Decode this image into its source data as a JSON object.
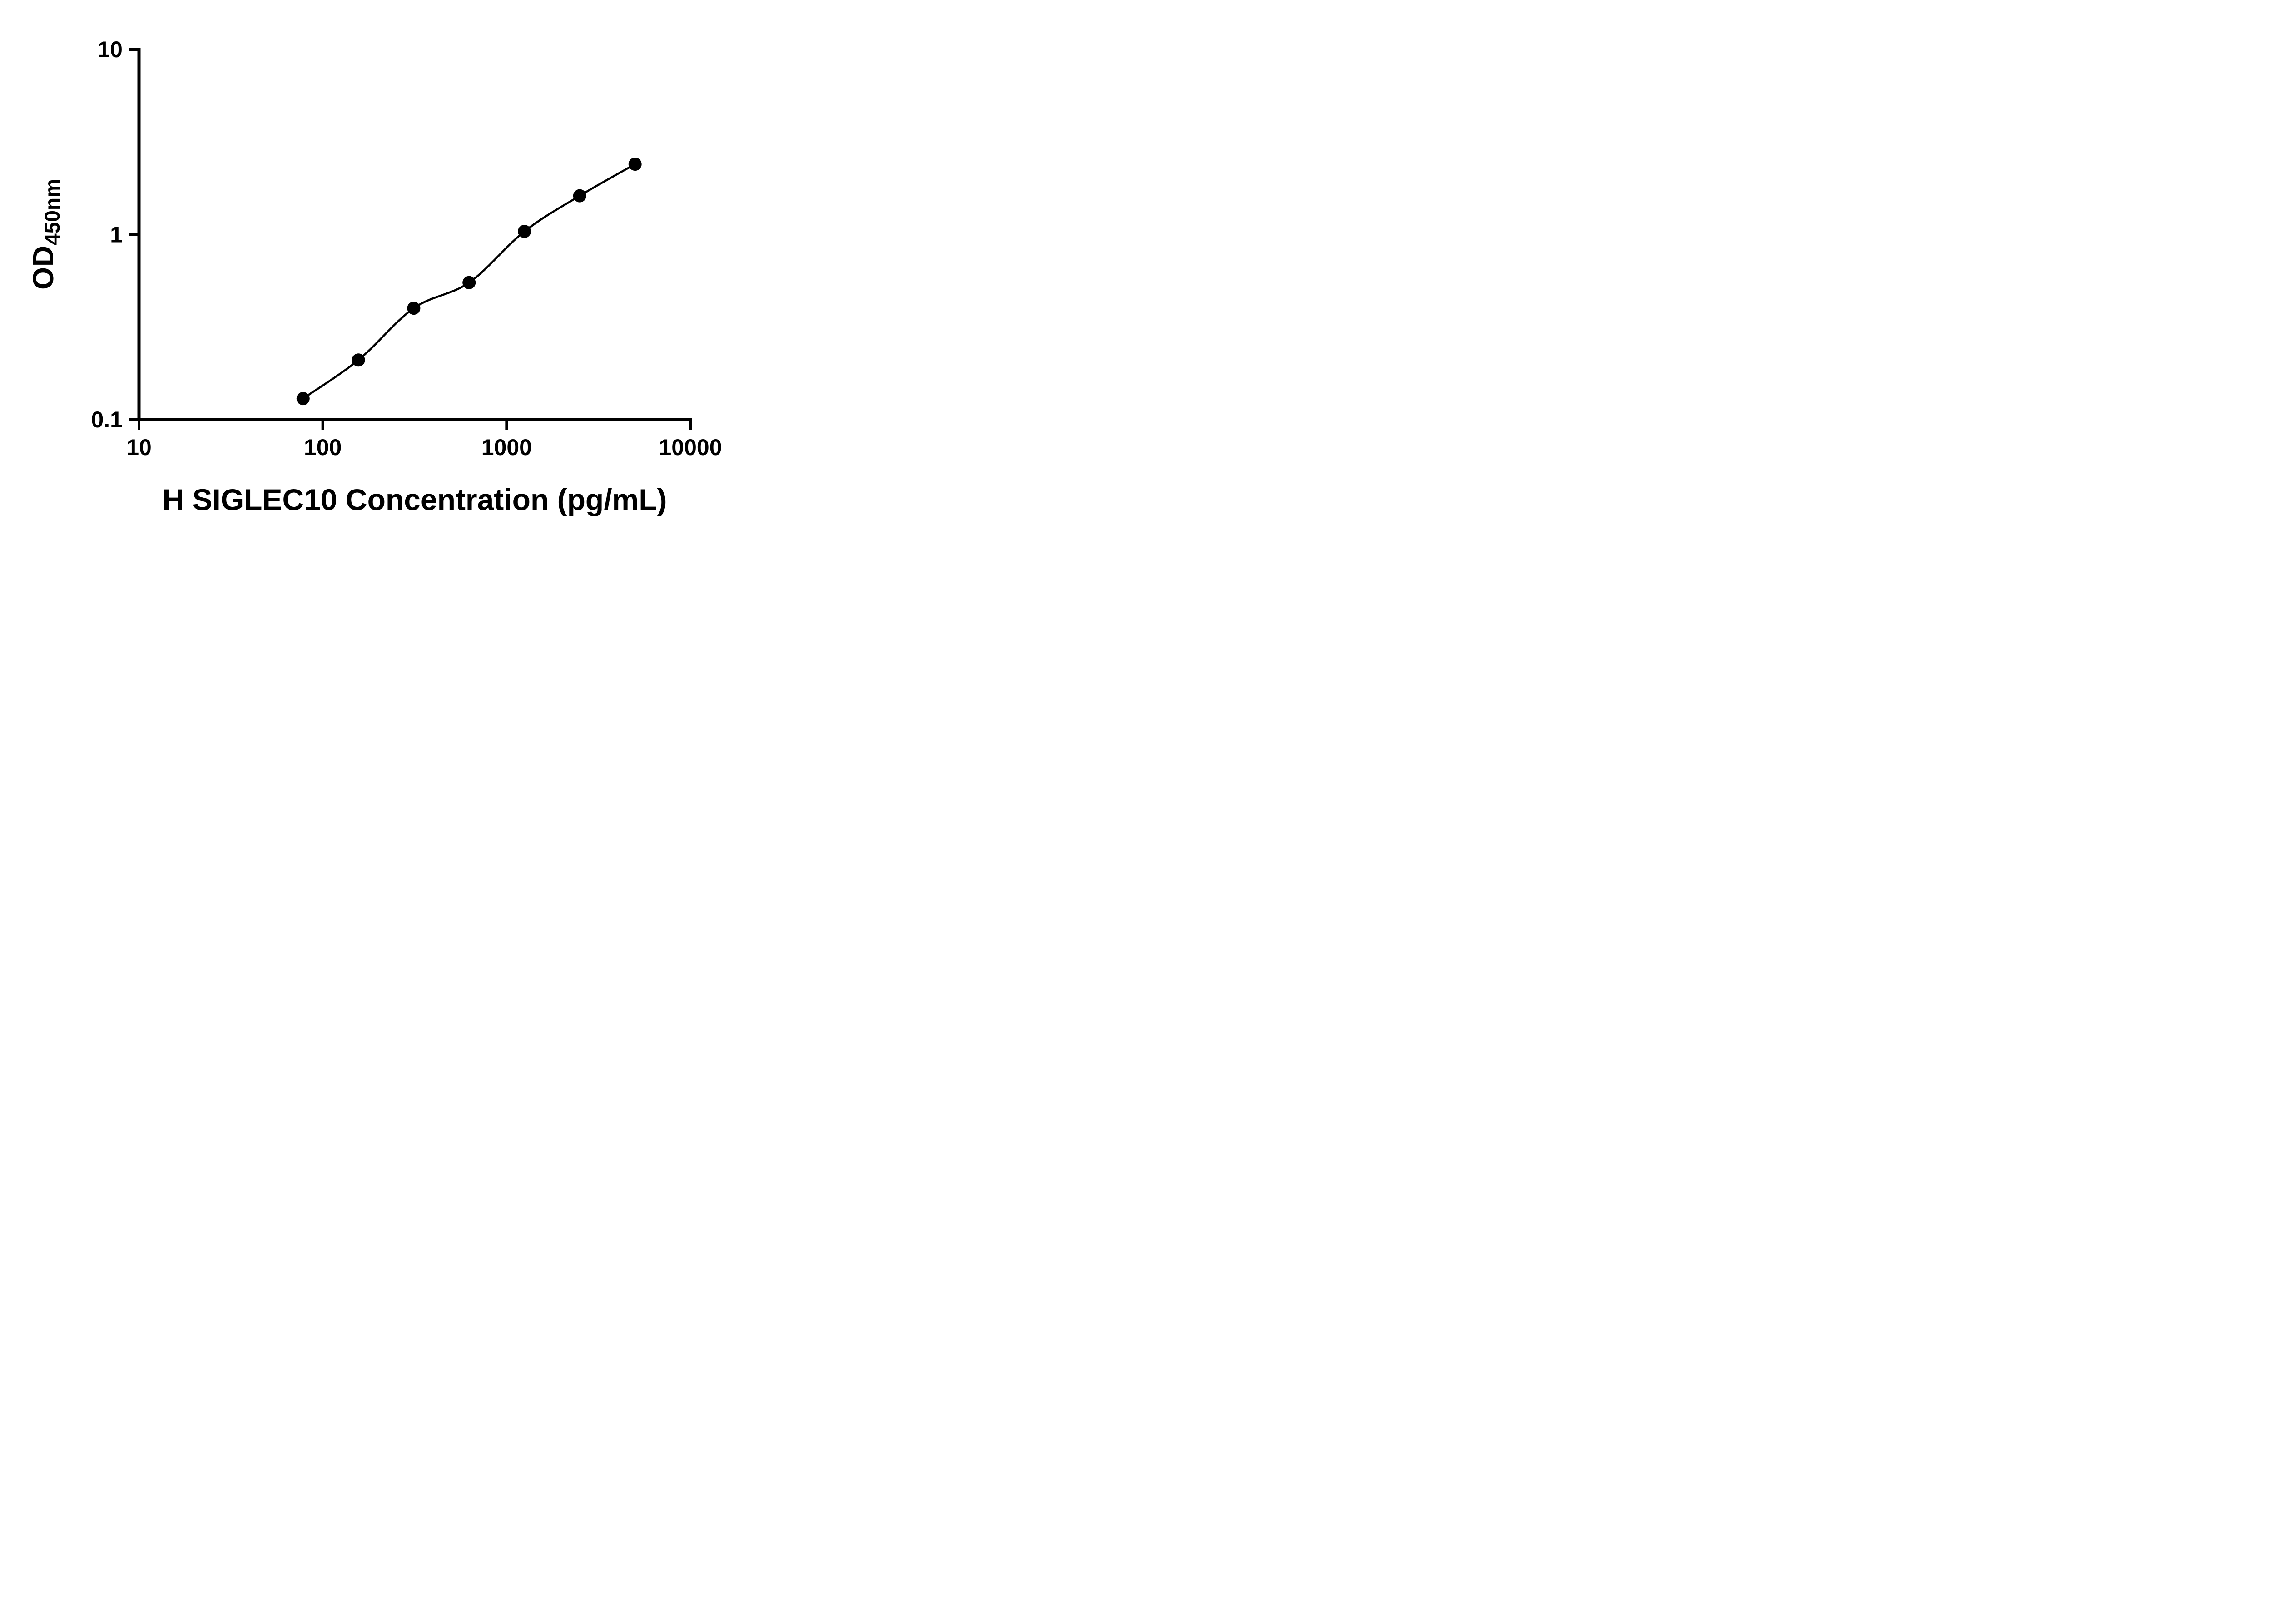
{
  "chart_data": {
    "type": "scatter",
    "subtype": "standard-curve-with-fit-line",
    "title": "",
    "xlabel": "H SIGLEC10 Concentration (pg/mL)",
    "ylabel_main": "OD",
    "ylabel_sub": "450nm",
    "x_scale": "log10",
    "y_scale": "log10",
    "xlim": [
      10,
      10000
    ],
    "ylim": [
      0.1,
      10
    ],
    "x_ticks": [
      10,
      100,
      1000,
      10000
    ],
    "x_tick_labels": [
      "10",
      "100",
      "1000",
      "10000"
    ],
    "y_ticks": [
      0.1,
      1,
      10
    ],
    "y_tick_labels": [
      "0.1",
      "1",
      "10"
    ],
    "grid": false,
    "legend": "none",
    "axis_color": "#000000",
    "line_color": "#000000",
    "marker_color": "#000000",
    "background_color": "#ffffff",
    "fit_line": true,
    "points": [
      {
        "x": 78.125,
        "y": 0.13
      },
      {
        "x": 156.25,
        "y": 0.21
      },
      {
        "x": 312.5,
        "y": 0.4
      },
      {
        "x": 625,
        "y": 0.55
      },
      {
        "x": 1250,
        "y": 1.04
      },
      {
        "x": 2500,
        "y": 1.62
      },
      {
        "x": 5000,
        "y": 2.4
      }
    ]
  }
}
